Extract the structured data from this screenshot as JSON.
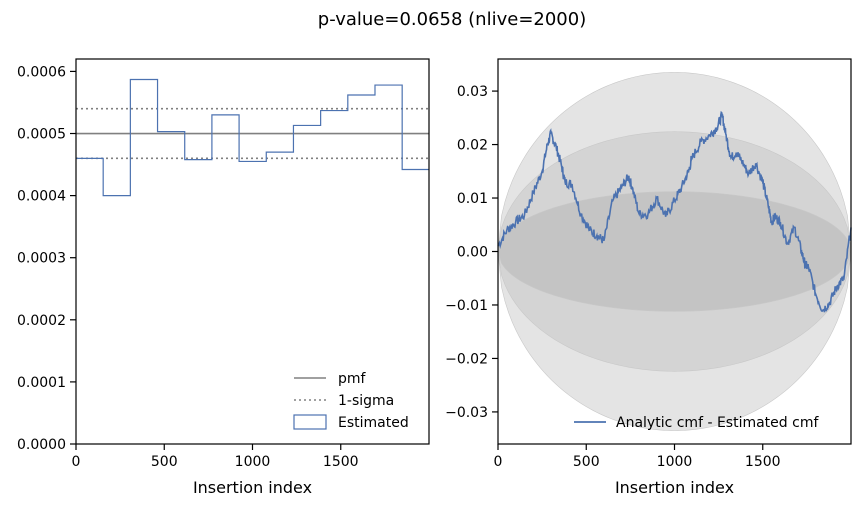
{
  "figure": {
    "suptitle": "p-value=0.0658 (nlive=2000)"
  },
  "chart_data": [
    {
      "type": "line",
      "panel": "left",
      "xlabel": "Insertion index",
      "ylabel": "",
      "xlim": [
        0,
        2000
      ],
      "ylim": [
        0,
        0.00062
      ],
      "xticks": [
        "0",
        "500",
        "1000",
        "1500"
      ],
      "xtick_values": [
        0,
        500,
        1000,
        1500
      ],
      "yticks": [
        "0.0000",
        "0.0001",
        "0.0002",
        "0.0003",
        "0.0004",
        "0.0005",
        "0.0006"
      ],
      "ytick_values": [
        0,
        0.0001,
        0.0002,
        0.0003,
        0.0004,
        0.0005,
        0.0006
      ],
      "legend_position": "lower-right",
      "series": [
        {
          "name": "pmf",
          "kind": "hline",
          "y": 0.0005,
          "color": "#808080",
          "style": "solid"
        },
        {
          "name": "1-sigma",
          "kind": "hlines",
          "y": [
            0.00046,
            0.00054
          ],
          "color": "#808080",
          "style": "dotted"
        },
        {
          "name": "Estimated",
          "kind": "step-histogram",
          "color": "#4C72B0",
          "bin_edges": [
            0,
            154,
            308,
            462,
            616,
            770,
            924,
            1078,
            1232,
            1386,
            1540,
            1694,
            1848,
            2000
          ],
          "values": [
            0.00046,
            0.0004,
            0.000587,
            0.000503,
            0.000458,
            0.00053,
            0.000455,
            0.00047,
            0.000513,
            0.000537,
            0.000562,
            0.000578,
            0.000442
          ]
        }
      ]
    },
    {
      "type": "line",
      "panel": "right",
      "xlabel": "Insertion index",
      "ylabel": "",
      "xlim": [
        0,
        2000
      ],
      "ylim": [
        -0.036,
        0.036
      ],
      "xticks": [
        "0",
        "500",
        "1000",
        "1500"
      ],
      "xtick_values": [
        0,
        500,
        1000,
        1500
      ],
      "yticks": [
        "−0.03",
        "−0.02",
        "−0.01",
        "0.00",
        "0.01",
        "0.02",
        "0.03"
      ],
      "ytick_values": [
        -0.03,
        -0.02,
        -0.01,
        0,
        0.01,
        0.02,
        0.03
      ],
      "legend_position": "lower-right",
      "bands": [
        {
          "sigma": 3,
          "amplitude": 0.0335,
          "color": "#e4e4e4"
        },
        {
          "sigma": 2,
          "amplitude": 0.0224,
          "color": "#d4d4d4"
        },
        {
          "sigma": 1,
          "amplitude": 0.0112,
          "color": "#c4c4c4"
        }
      ],
      "series": [
        {
          "name": "Analytic cmf - Estimated cmf",
          "color": "#4C72B0",
          "x": [
            0,
            50,
            100,
            150,
            200,
            250,
            280,
            300,
            330,
            360,
            380,
            420,
            470,
            520,
            560,
            600,
            650,
            700,
            740,
            760,
            800,
            850,
            900,
            950,
            1000,
            1040,
            1080,
            1100,
            1150,
            1200,
            1240,
            1270,
            1290,
            1320,
            1350,
            1380,
            1420,
            1460,
            1500,
            1530,
            1550,
            1570,
            1600,
            1640,
            1680,
            1720,
            1740,
            1760,
            1800,
            1840,
            1880,
            1920,
            1960,
            2000
          ],
          "y": [
            0.001,
            0.004,
            0.0055,
            0.0068,
            0.011,
            0.015,
            0.02,
            0.022,
            0.0195,
            0.016,
            0.013,
            0.0125,
            0.007,
            0.004,
            0.003,
            0.002,
            0.0095,
            0.012,
            0.014,
            0.012,
            0.007,
            0.007,
            0.01,
            0.0065,
            0.0095,
            0.012,
            0.015,
            0.0175,
            0.0205,
            0.0218,
            0.0232,
            0.0255,
            0.022,
            0.0175,
            0.0185,
            0.017,
            0.0145,
            0.0165,
            0.013,
            0.0088,
            0.0055,
            0.0065,
            0.0055,
            0.0015,
            0.0045,
            0.0,
            -0.0025,
            -0.003,
            -0.008,
            -0.011,
            -0.0095,
            -0.0065,
            -0.005,
            0.0045
          ]
        }
      ]
    }
  ]
}
